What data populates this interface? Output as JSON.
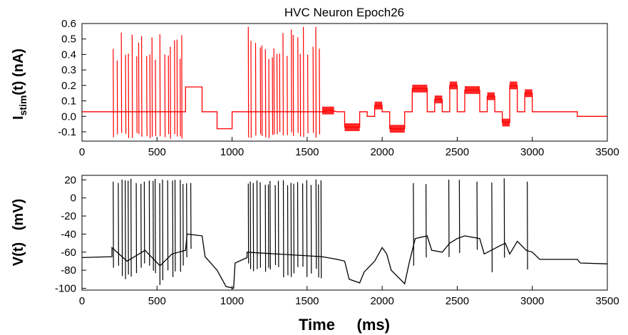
{
  "chart_data": [
    {
      "type": "line",
      "title": "HVC Neuron Epoch26",
      "ylabel": "Istim(t)   (nA)",
      "ylabel_main": "I",
      "ylabel_sub": "stim",
      "ylabel_rest": "(t)   (nA)",
      "xlabel": "",
      "xlim": [
        0,
        3500
      ],
      "ylim": [
        -0.16,
        0.6
      ],
      "xticks": [
        0,
        500,
        1000,
        1500,
        2000,
        2500,
        3000,
        3500
      ],
      "yticks": [
        -0.1,
        0.0,
        0.1,
        0.2,
        0.3,
        0.4,
        0.5,
        0.6
      ],
      "ytick_labels": [
        "-0.1",
        "0.0",
        "0.1",
        "0.2",
        "0.3",
        "0.4",
        "0.5",
        "0.6"
      ],
      "grid": false,
      "series": [
        {
          "color": "#ff0000",
          "baseline": [
            [
              0,
              0.03
            ],
            [
              200,
              0.03
            ],
            [
              690,
              0.03
            ],
            [
              690,
              0.19
            ],
            [
              800,
              0.19
            ],
            [
              800,
              0.03
            ],
            [
              900,
              0.03
            ],
            [
              900,
              -0.08
            ],
            [
              1000,
              -0.08
            ],
            [
              1000,
              0.03
            ],
            [
              1100,
              0.03
            ],
            [
              1600,
              0.03
            ],
            [
              1650,
              0.04
            ],
            [
              1700,
              0.03
            ],
            [
              1750,
              0.03
            ],
            [
              1750,
              -0.07
            ],
            [
              1850,
              -0.07
            ],
            [
              1850,
              0.03
            ],
            [
              1900,
              0.03
            ],
            [
              1900,
              0.0
            ],
            [
              1950,
              0.0
            ],
            [
              1950,
              0.07
            ],
            [
              2000,
              0.07
            ],
            [
              2000,
              0.03
            ],
            [
              2050,
              0.03
            ],
            [
              2050,
              -0.08
            ],
            [
              2150,
              -0.08
            ],
            [
              2150,
              0.03
            ],
            [
              2200,
              0.03
            ],
            [
              2200,
              0.18
            ],
            [
              2300,
              0.18
            ],
            [
              2300,
              0.03
            ],
            [
              2350,
              0.03
            ],
            [
              2350,
              0.11
            ],
            [
              2400,
              0.11
            ],
            [
              2400,
              0.03
            ],
            [
              2450,
              0.03
            ],
            [
              2450,
              0.2
            ],
            [
              2500,
              0.2
            ],
            [
              2500,
              0.03
            ],
            [
              2550,
              0.03
            ],
            [
              2550,
              0.17
            ],
            [
              2650,
              0.17
            ],
            [
              2650,
              0.03
            ],
            [
              2700,
              0.03
            ],
            [
              2700,
              0.13
            ],
            [
              2750,
              0.13
            ],
            [
              2750,
              0.03
            ],
            [
              2800,
              0.03
            ],
            [
              2800,
              -0.04
            ],
            [
              2850,
              -0.04
            ],
            [
              2850,
              0.2
            ],
            [
              2900,
              0.2
            ],
            [
              2900,
              0.03
            ],
            [
              2950,
              0.03
            ],
            [
              2950,
              0.15
            ],
            [
              3000,
              0.15
            ],
            [
              3000,
              0.03
            ],
            [
              3050,
              0.03
            ],
            [
              3300,
              0.03
            ],
            [
              3300,
              0.0
            ],
            [
              3500,
              0.0
            ]
          ],
          "spike_windows": [
            [
              200,
              690
            ],
            [
              1100,
              1600
            ]
          ],
          "spike_max": 0.58,
          "spike_min": -0.15,
          "noise_windows": [
            [
              1600,
              1680
            ],
            [
              1750,
              1850
            ],
            [
              1950,
              2000
            ],
            [
              2050,
              2150
            ],
            [
              2200,
              2300
            ],
            [
              2350,
              2400
            ],
            [
              2450,
              2500
            ],
            [
              2550,
              2650
            ],
            [
              2700,
              2750
            ],
            [
              2800,
              2850
            ],
            [
              2850,
              2900
            ],
            [
              2950,
              3000
            ]
          ]
        }
      ]
    },
    {
      "type": "line",
      "title": "",
      "ylabel": "V(t)   (mV)",
      "xlabel": "Time     (ms)",
      "xlim": [
        0,
        3500
      ],
      "ylim": [
        -102,
        25
      ],
      "xticks": [
        0,
        500,
        1000,
        1500,
        2000,
        2500,
        3000,
        3500
      ],
      "yticks": [
        -100,
        -80,
        -60,
        -40,
        -20,
        0,
        20
      ],
      "ytick_labels": [
        "-100",
        "-80",
        "-60",
        "-40",
        "-20",
        "0",
        "20"
      ],
      "grid": false,
      "series": [
        {
          "color": "#000000",
          "baseline": [
            [
              0,
              -66
            ],
            [
              200,
              -65
            ],
            [
              200,
              -55
            ],
            [
              300,
              -70
            ],
            [
              420,
              -58
            ],
            [
              520,
              -75
            ],
            [
              600,
              -62
            ],
            [
              690,
              -58
            ],
            [
              700,
              -40
            ],
            [
              800,
              -42
            ],
            [
              820,
              -65
            ],
            [
              900,
              -80
            ],
            [
              960,
              -98
            ],
            [
              1010,
              -100
            ],
            [
              1020,
              -72
            ],
            [
              1100,
              -66
            ],
            [
              1100,
              -60
            ],
            [
              1600,
              -65
            ],
            [
              1700,
              -68
            ],
            [
              1750,
              -70
            ],
            [
              1780,
              -90
            ],
            [
              1850,
              -94
            ],
            [
              1880,
              -82
            ],
            [
              1950,
              -70
            ],
            [
              2000,
              -55
            ],
            [
              2030,
              -62
            ],
            [
              2060,
              -80
            ],
            [
              2150,
              -95
            ],
            [
              2180,
              -72
            ],
            [
              2220,
              -45
            ],
            [
              2300,
              -42
            ],
            [
              2330,
              -58
            ],
            [
              2400,
              -60
            ],
            [
              2450,
              -50
            ],
            [
              2500,
              -45
            ],
            [
              2550,
              -42
            ],
            [
              2650,
              -45
            ],
            [
              2680,
              -62
            ],
            [
              2760,
              -55
            ],
            [
              2820,
              -50
            ],
            [
              2850,
              -62
            ],
            [
              2900,
              -48
            ],
            [
              2960,
              -58
            ],
            [
              3000,
              -60
            ],
            [
              3050,
              -68
            ],
            [
              3300,
              -68
            ],
            [
              3320,
              -72
            ],
            [
              3500,
              -73
            ]
          ],
          "spike_windows": [
            [
              200,
              730
            ],
            [
              1100,
              1600
            ],
            [
              2200,
              3000
            ]
          ],
          "spike_max": 22
        }
      ]
    }
  ]
}
